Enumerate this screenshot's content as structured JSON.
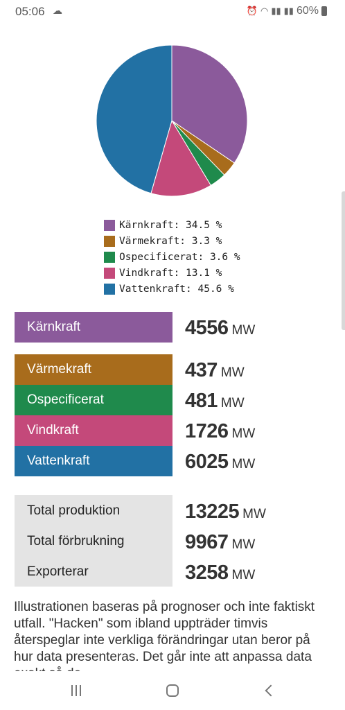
{
  "status": {
    "time": "05:06",
    "battery": "60%"
  },
  "chart_data": {
    "type": "pie",
    "categories": [
      "Kärnkraft",
      "Värmekraft",
      "Ospecificerat",
      "Vindkraft",
      "Vattenkraft"
    ],
    "values": [
      34.5,
      3.3,
      3.6,
      13.1,
      45.6
    ],
    "colors": [
      "#8b5a9b",
      "#a86c1c",
      "#1f8a4c",
      "#c4497a",
      "#2271a4"
    ],
    "legend": [
      "Kärnkraft: 34.5 %",
      "Värmekraft: 3.3 %",
      "Ospecificerat: 3.6 %",
      "Vindkraft: 13.1 %",
      "Vattenkraft: 45.6 %"
    ]
  },
  "sources": [
    {
      "label": "Kärnkraft",
      "value": "4556",
      "unit": "MW",
      "color": "#8b5a9b"
    },
    {
      "label": "Värmekraft",
      "value": "437",
      "unit": "MW",
      "color": "#a86c1c"
    },
    {
      "label": "Ospecificerat",
      "value": "481",
      "unit": "MW",
      "color": "#1f8a4c"
    },
    {
      "label": "Vindkraft",
      "value": "1726",
      "unit": "MW",
      "color": "#c4497a"
    },
    {
      "label": "Vattenkraft",
      "value": "6025",
      "unit": "MW",
      "color": "#2271a4"
    }
  ],
  "totals": [
    {
      "label": "Total produktion",
      "value": "13225",
      "unit": "MW"
    },
    {
      "label": "Total förbrukning",
      "value": "9967",
      "unit": "MW"
    },
    {
      "label": "Exporterar",
      "value": "3258",
      "unit": "MW"
    }
  ],
  "note": "Illustrationen baseras på prognoser och inte faktiskt utfall. \"Hacken\" som ibland uppträder timvis återspeglar inte verkliga förändringar utan beror på hur data presenteras. Det går inte att anpassa data exakt så de"
}
